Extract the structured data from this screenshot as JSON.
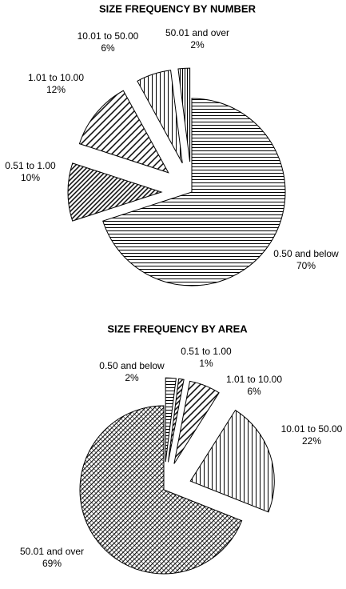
{
  "chart_data": [
    {
      "type": "pie",
      "title": "SIZE FREQUENCY BY NUMBER",
      "categories": [
        "0.50 and below",
        "0.51 to 1.00",
        "1.01 to 10.00",
        "10.01 to 50.00",
        "50.01 and over"
      ],
      "values": [
        70,
        10,
        12,
        6,
        2
      ],
      "value_labels": [
        "70%",
        "10%",
        "12%",
        "6%",
        "2%"
      ],
      "hatch": [
        "horizontal",
        "diagonal-dense",
        "diagonal",
        "vertical",
        "vertical-dense"
      ]
    },
    {
      "type": "pie",
      "title": "SIZE FREQUENCY BY AREA",
      "categories": [
        "0.50 and below",
        "0.51 to 1.00",
        "1.01 to 10.00",
        "10.01 to 50.00",
        "50.01 and over"
      ],
      "values": [
        2,
        1,
        6,
        22,
        69
      ],
      "value_labels": [
        "2%",
        "1%",
        "6%",
        "22%",
        "69%"
      ],
      "hatch": [
        "horizontal",
        "diagonal-dense",
        "diagonal",
        "vertical",
        "cross-dense"
      ]
    }
  ]
}
